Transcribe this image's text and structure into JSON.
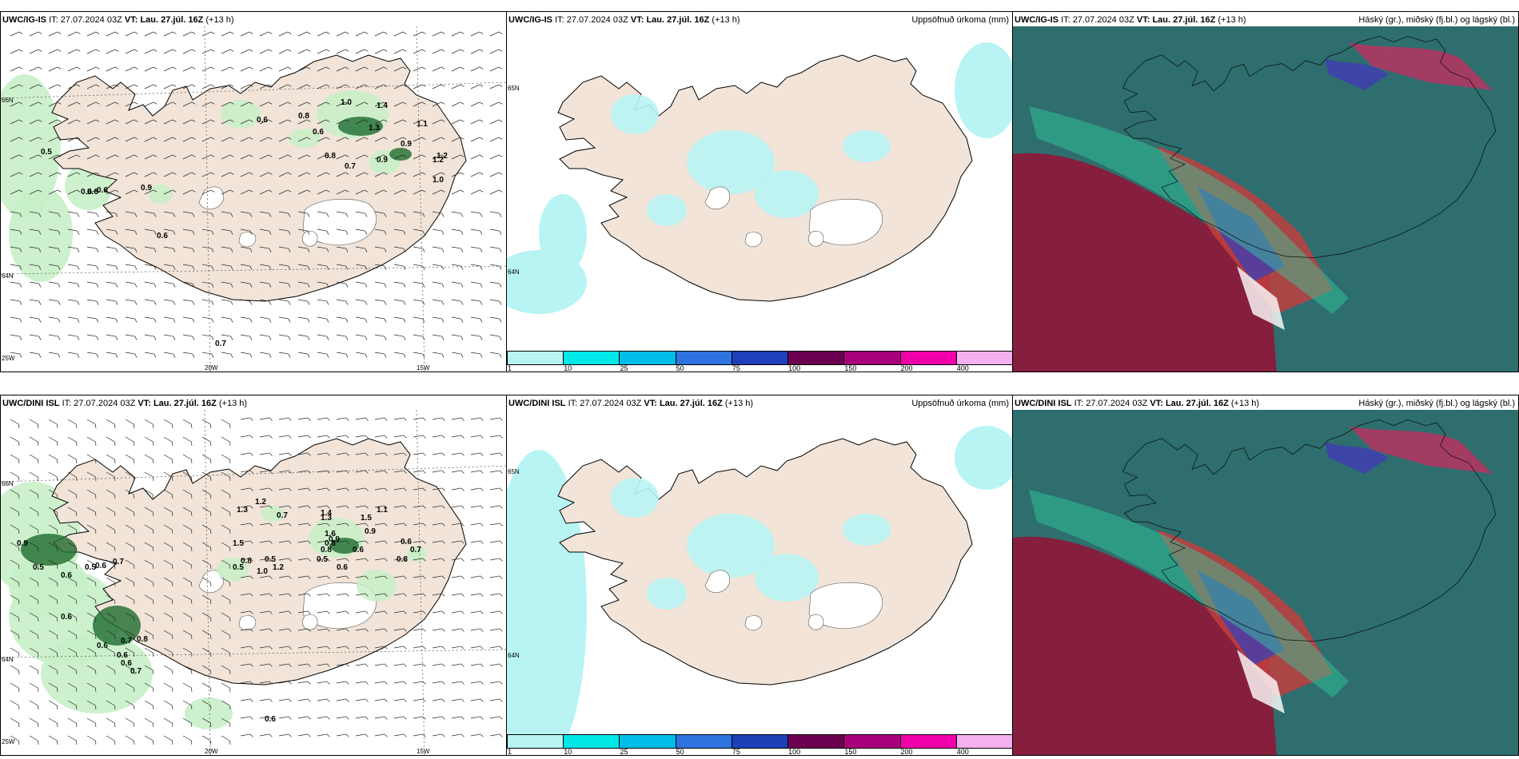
{
  "panels": [
    {
      "model": "UWC/IG-IS",
      "it_label": "IT:",
      "it_value": "27.07.2024 03Z",
      "vt_label": "VT:",
      "vt_value": "Lau. 27.júl. 16Z",
      "lead": "(+13 h)",
      "right_title": "",
      "kind": "wind",
      "axis_labels": {
        "lat_a": "66N",
        "lat_b": "64N",
        "lon_w": "25W",
        "lon_a": "20W",
        "lon_b": "15W"
      },
      "precip_labels": [
        "0.5",
        "0.6",
        "0.6",
        "0.6",
        "0.9",
        "0.6",
        "0.6",
        "0.8",
        "0.6",
        "0.8",
        "0.7",
        "0.9",
        "1.0",
        "1.3",
        "1.4",
        "0.9",
        "1.1",
        "1.2",
        "1.2",
        "1.0",
        "0.7"
      ]
    },
    {
      "model": "UWC/IG-IS",
      "it_label": "IT:",
      "it_value": "27.07.2024 03Z",
      "vt_label": "VT:",
      "vt_value": "Lau. 27.júl. 16Z",
      "lead": "(+13 h)",
      "right_title": "Uppsöfnuð úrkoma (mm)",
      "kind": "accum",
      "axis_labels": {
        "lat_a": "65N",
        "lat_b": "64N"
      }
    },
    {
      "model": "UWC/IG-IS",
      "it_label": "IT:",
      "it_value": "27.07.2024 03Z",
      "vt_label": "VT:",
      "vt_value": "Lau. 27.júl. 16Z",
      "lead": "(+13 h)",
      "right_title": "Háský (gr.), miðský (fj.bl.) og lágský (bl.)",
      "kind": "cloud"
    },
    {
      "model": "UWC/DINI ISL",
      "it_label": "IT:",
      "it_value": "27.07.2024 03Z",
      "vt_label": "VT:",
      "vt_value": "Lau. 27.júl. 16Z",
      "lead": "(+13 h)",
      "right_title": "",
      "kind": "wind",
      "axis_labels": {
        "lat_a": "66N",
        "lat_b": "64N",
        "lon_w": "25W",
        "lon_a": "20W",
        "lon_b": "15W"
      },
      "precip_labels": [
        "0.9",
        "0.5",
        "0.6",
        "0.5",
        "0.6",
        "0.7",
        "0.6",
        "0.6",
        "0.7",
        "0.8",
        "0.6",
        "0.6",
        "1.3",
        "1.5",
        "1.2",
        "0.7",
        "1.0",
        "0.8",
        "0.5",
        "1.4",
        "1.3",
        "1.6",
        "0.8",
        "0.5",
        "1.2",
        "0.9",
        "0.8",
        "0.5",
        "0.6",
        "0.6",
        "1.1",
        "1.5",
        "0.9",
        "0.7",
        "0.6",
        "0.8",
        "0.7",
        "0.6"
      ]
    },
    {
      "model": "UWC/DINI ISL",
      "it_label": "IT:",
      "it_value": "27.07.2024 03Z",
      "vt_label": "VT:",
      "vt_value": "Lau. 27.júl. 16Z",
      "lead": "(+13 h)",
      "right_title": "Uppsöfnuð úrkoma (mm)",
      "kind": "accum",
      "axis_labels": {
        "lat_a": "65N",
        "lat_b": "64N"
      }
    },
    {
      "model": "UWC/DINI ISL",
      "it_label": "IT:",
      "it_value": "27.07.2024 03Z",
      "vt_label": "VT:",
      "vt_value": "Lau. 27.júl. 16Z",
      "lead": "(+13 h)",
      "right_title": "Háský (gr.), miðský (fj.bl.) og lágský (bl.)",
      "kind": "cloud"
    }
  ],
  "colorbar": {
    "labels": [
      "1",
      "10",
      "25",
      "50",
      "75",
      "100",
      "150",
      "200",
      "400"
    ],
    "colors": [
      "#b8f4f4",
      "#00e8e8",
      "#00bde8",
      "#2e73e0",
      "#1f3fb8",
      "#6b0050",
      "#a8007a",
      "#f000a8",
      "#f4b0f0"
    ]
  },
  "colors": {
    "land": "#f2e4d8",
    "light_precip": "#b8f4f4",
    "green_light": "#c8f0c8",
    "green_dark": "#1e6b2e",
    "cloud_teal": "#2e6e6e",
    "cloud_red": "#8a1a3a",
    "cloud_blue": "#4040b0"
  }
}
